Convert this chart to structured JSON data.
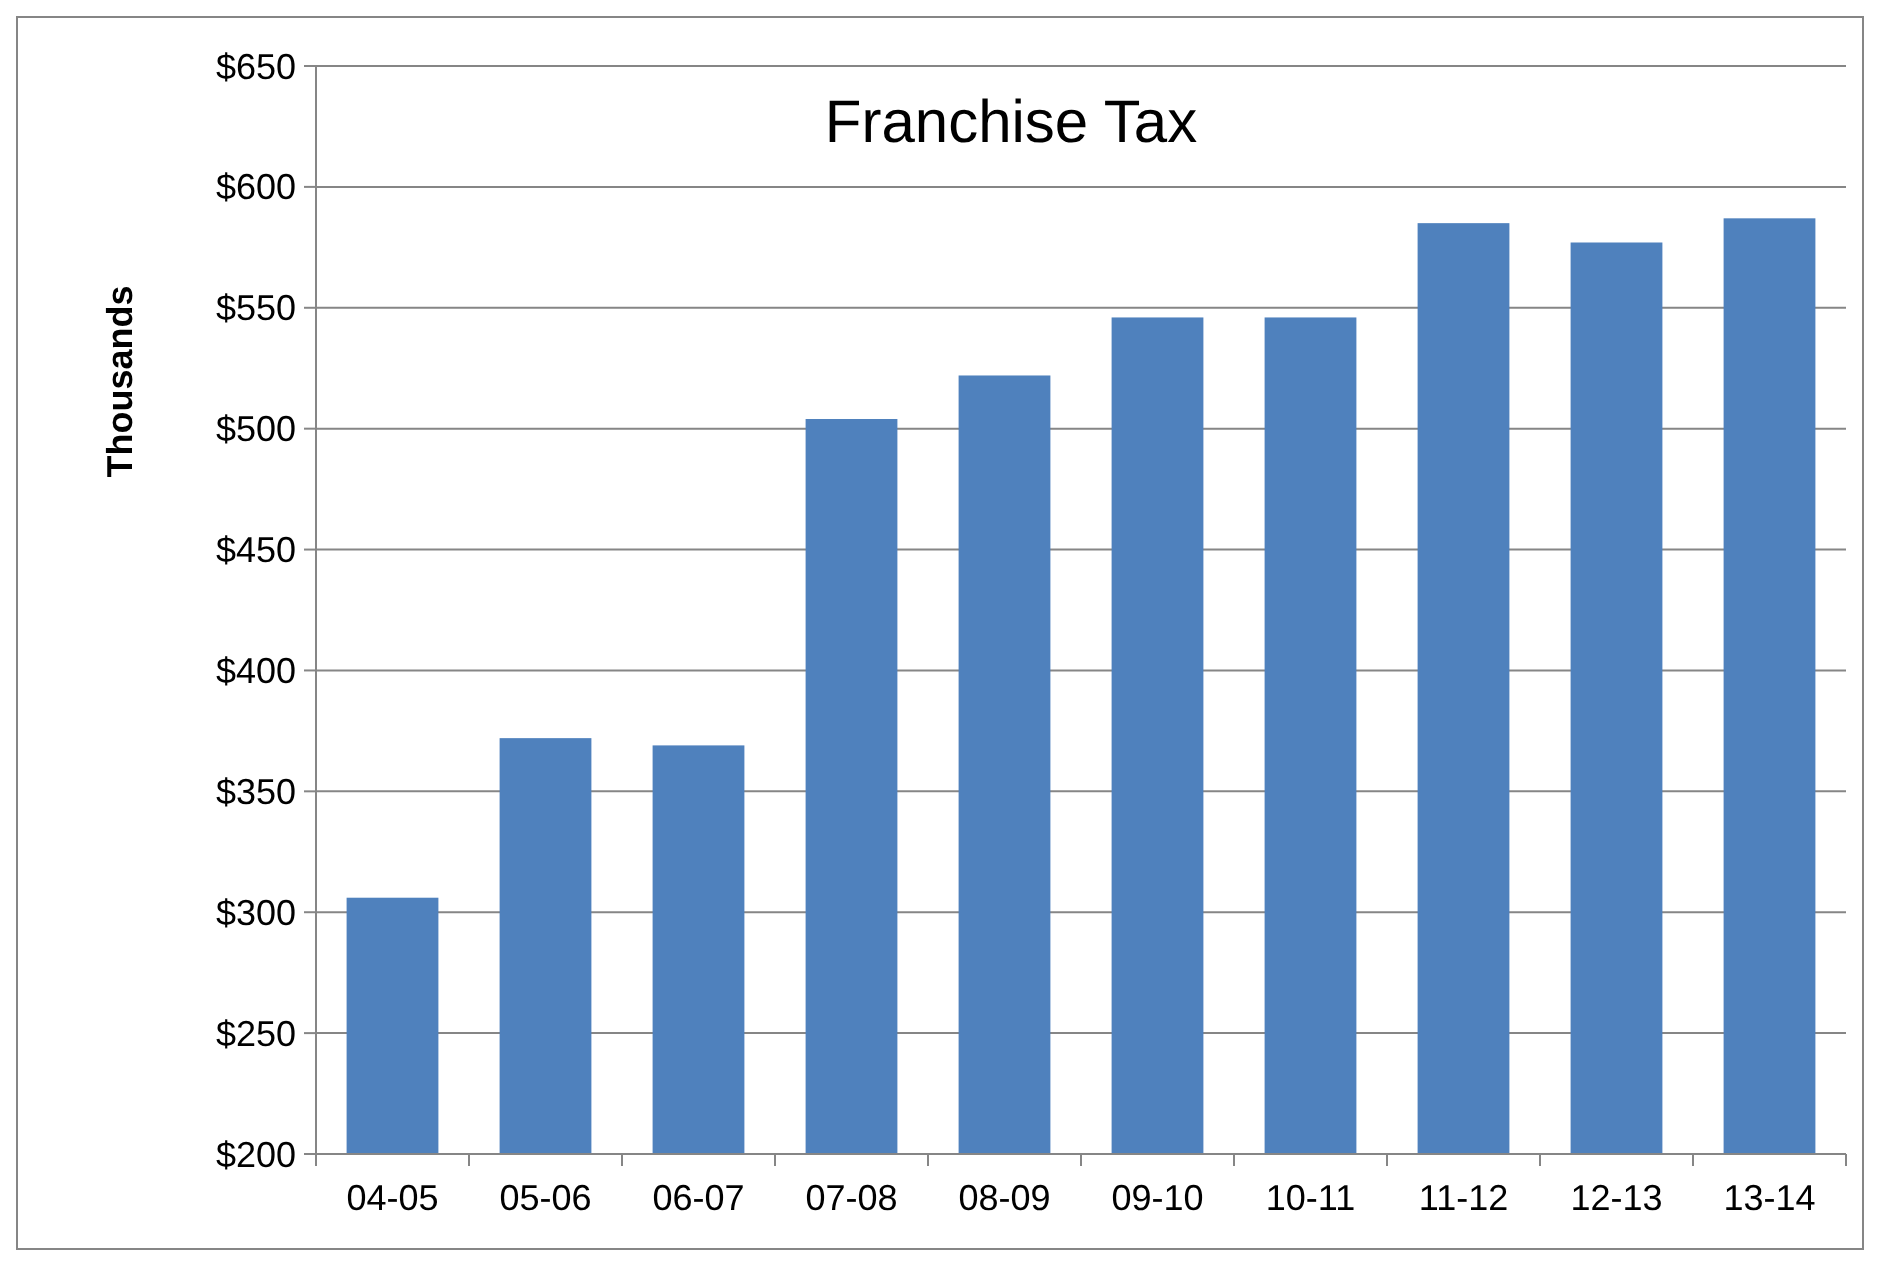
{
  "chart_data": {
    "type": "bar",
    "title": "Franchise Tax",
    "ylabel": "Thousands",
    "categories": [
      "04-05",
      "05-06",
      "06-07",
      "07-08",
      "08-09",
      "09-10",
      "10-11",
      "11-12",
      "12-13",
      "13-14"
    ],
    "values": [
      306,
      372,
      369,
      504,
      522,
      546,
      546,
      585,
      577,
      587
    ],
    "color": "#4f81bd",
    "ylim": [
      200,
      650
    ],
    "yticks": [
      {
        "value": 200,
        "label": "$200"
      },
      {
        "value": 250,
        "label": "$250"
      },
      {
        "value": 300,
        "label": "$300"
      },
      {
        "value": 350,
        "label": "$350"
      },
      {
        "value": 400,
        "label": "$400"
      },
      {
        "value": 450,
        "label": "$450"
      },
      {
        "value": 500,
        "label": "$500"
      },
      {
        "value": 550,
        "label": "$550"
      },
      {
        "value": 600,
        "label": "$600"
      },
      {
        "value": 650,
        "label": "$650"
      }
    ],
    "grid": "y"
  }
}
